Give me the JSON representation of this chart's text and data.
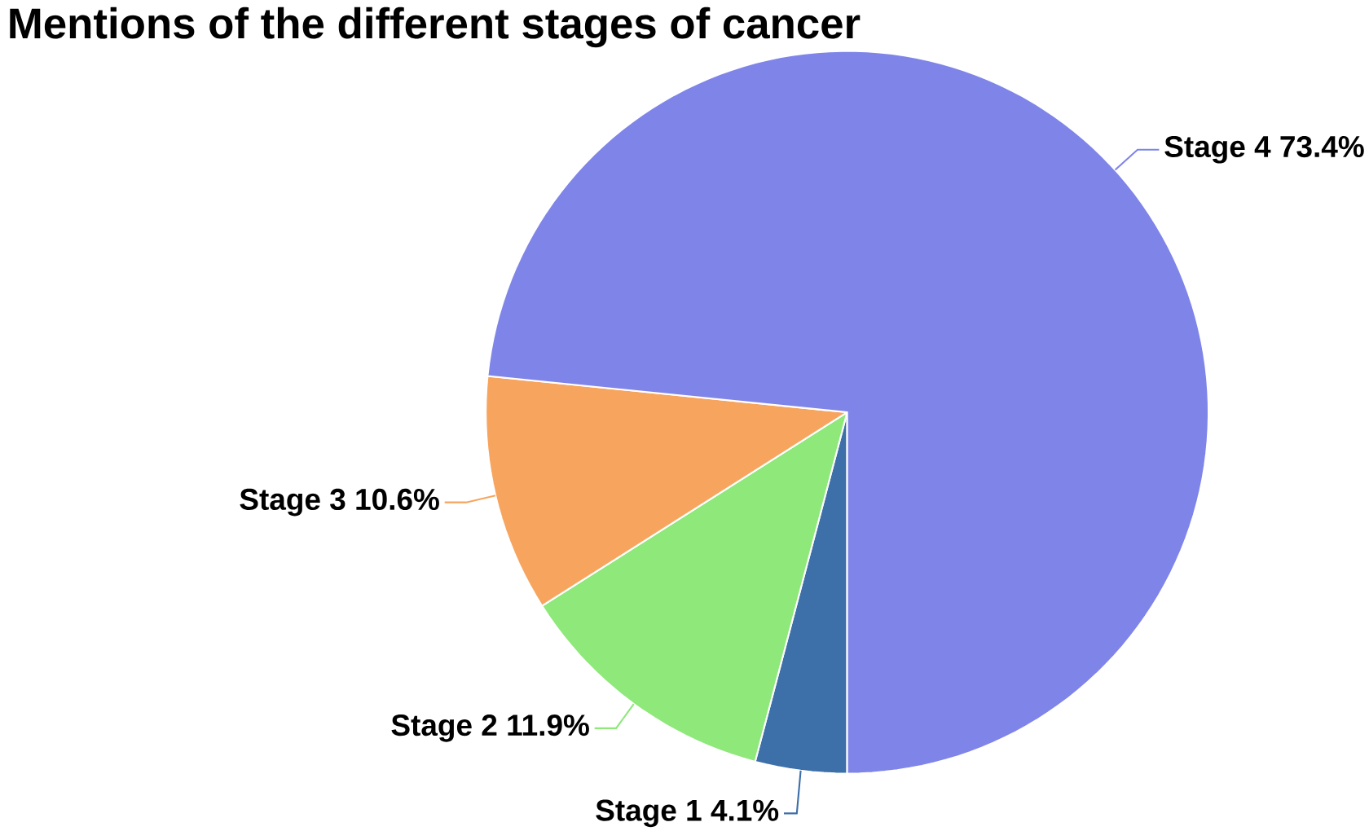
{
  "chart_data": {
    "type": "pie",
    "title": "Mentions of the different stages of cancer",
    "categories": [
      "Stage 1",
      "Stage 2",
      "Stage 3",
      "Stage 4"
    ],
    "values": [
      4.1,
      11.9,
      10.6,
      73.4
    ],
    "value_labels": [
      "4.1%",
      "11.9%",
      "10.6%",
      "73.4%"
    ],
    "colors": [
      "#3d6fa8",
      "#8ee87a",
      "#f7a55e",
      "#7f85e8"
    ],
    "legend": false
  }
}
